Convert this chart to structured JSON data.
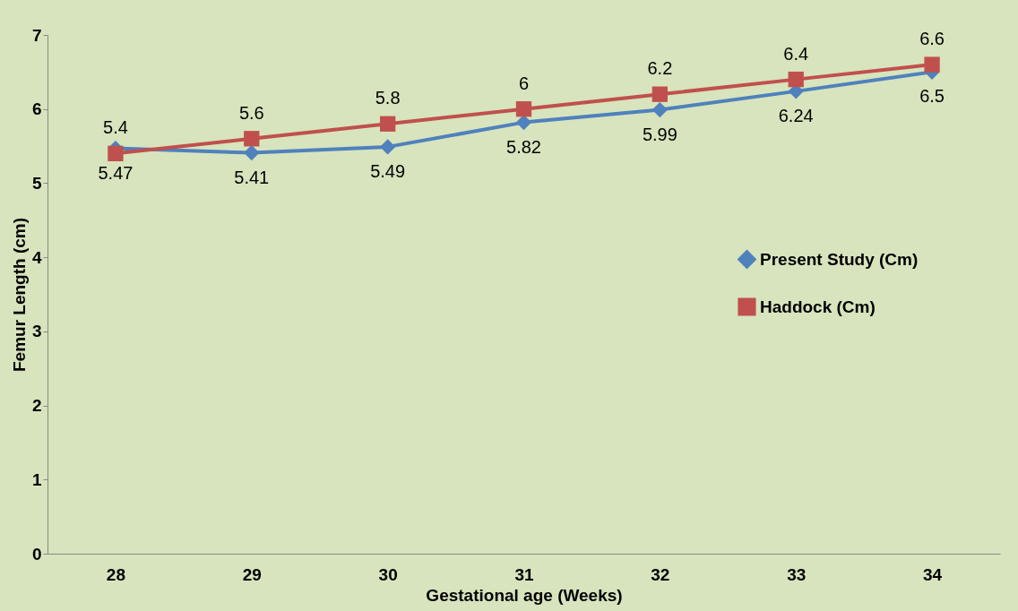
{
  "chart_data": {
    "type": "line",
    "xlabel": "Gestational age (Weeks)",
    "ylabel": "Femur Length (cm)",
    "categories": [
      "28",
      "29",
      "30",
      "31",
      "32",
      "33",
      "34"
    ],
    "series": [
      {
        "name": "Present Study (Cm)",
        "color": "#4f81bd",
        "marker": "diamond",
        "values": [
          5.47,
          5.41,
          5.49,
          5.82,
          5.99,
          6.24,
          6.5
        ]
      },
      {
        "name": "Haddock  (Cm)",
        "color": "#c0504d",
        "marker": "square",
        "values": [
          5.4,
          5.6,
          5.8,
          6,
          6.2,
          6.4,
          6.6
        ]
      }
    ],
    "ylim": [
      0,
      7
    ],
    "yticks": [
      0,
      1,
      2,
      3,
      4,
      5,
      6,
      7
    ],
    "grid": false,
    "legend": "right",
    "data_labels": true,
    "line_style": "solid"
  }
}
